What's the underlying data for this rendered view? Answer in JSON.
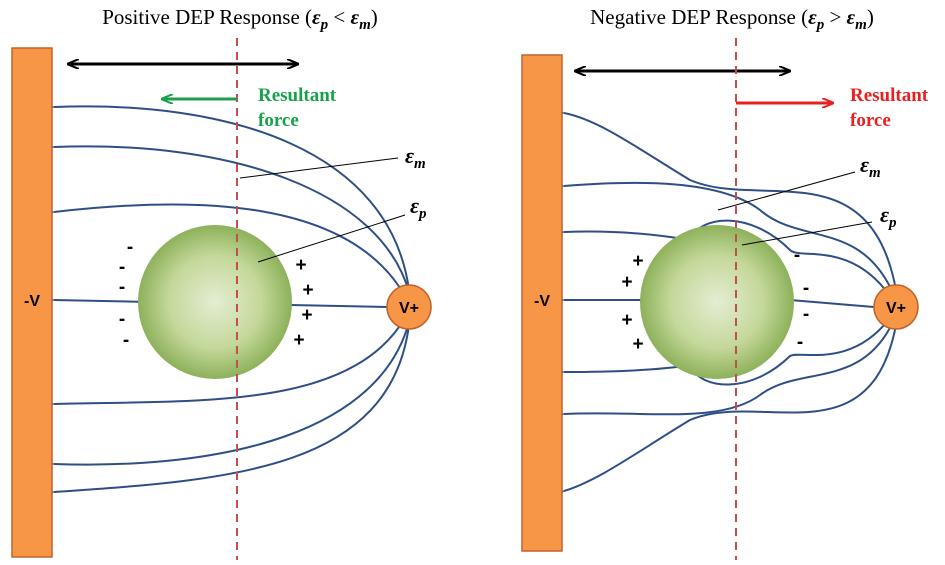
{
  "panels": [
    {
      "title": {
        "prefix": "Positive DEP Response (",
        "eps1": "ε",
        "sub1": "p",
        "op": " < ",
        "eps2": "ε",
        "sub2": "m",
        "close": ")"
      },
      "electrode_label": "-V",
      "source_label": "V+",
      "force_label": [
        "Resultant",
        "force"
      ],
      "medium_label": {
        "symbol": "ε",
        "sub": "m"
      },
      "particle_label": {
        "symbol": "ε",
        "sub": "p"
      },
      "left_charges": [
        "-",
        "-",
        "-",
        "-",
        "-"
      ],
      "right_charges": [
        "+",
        "+",
        "+",
        "+"
      ]
    },
    {
      "title": {
        "prefix": "Negative DEP Response (",
        "eps1": "ε",
        "sub1": "p",
        "op": " > ",
        "eps2": "ε",
        "sub2": "m",
        "close": ")"
      },
      "electrode_label": "-V",
      "source_label": "V+",
      "force_label": [
        "Resultant",
        "force"
      ],
      "medium_label": {
        "symbol": "ε",
        "sub": "m"
      },
      "particle_label": {
        "symbol": "ε",
        "sub": "p"
      },
      "left_charges": [
        "+",
        "+",
        "+",
        "+"
      ],
      "right_charges": [
        "-",
        "-",
        "-",
        "-"
      ]
    }
  ]
}
